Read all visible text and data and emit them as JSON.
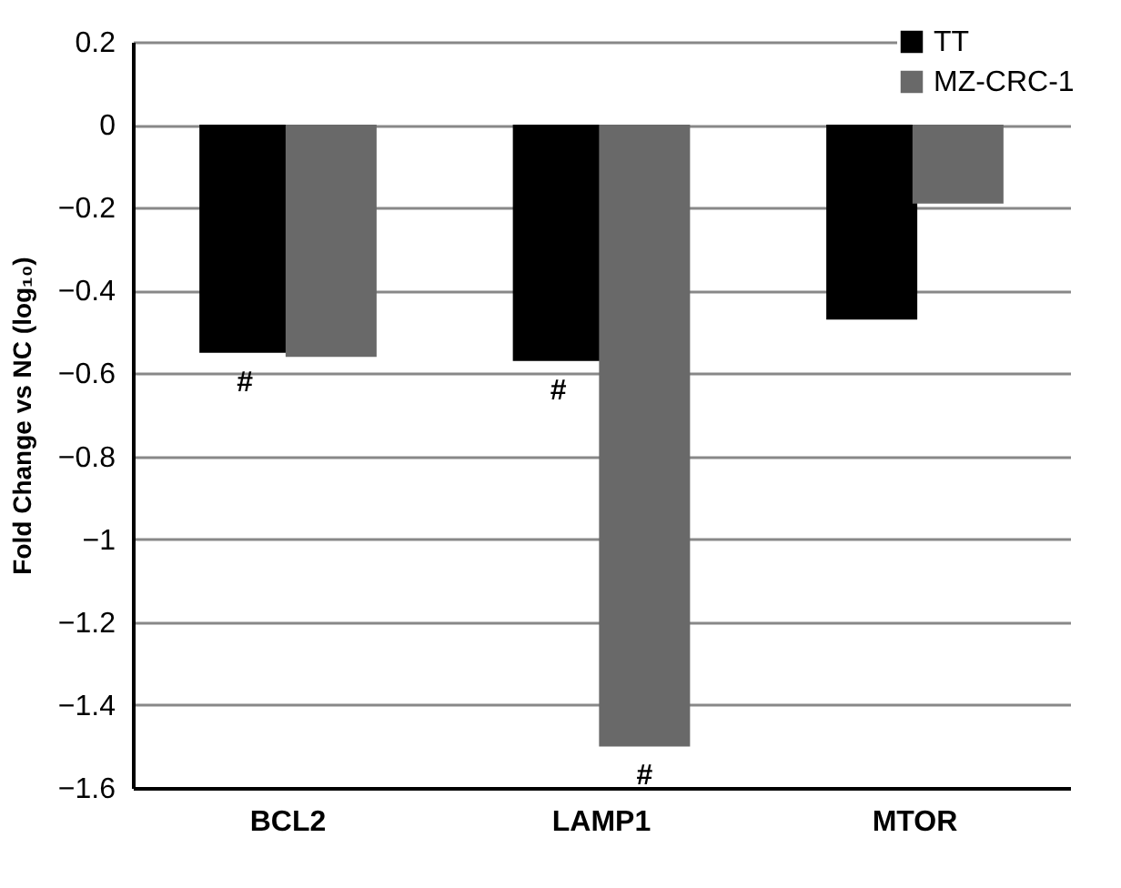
{
  "chart_data": {
    "type": "bar",
    "ylabel": "Fold Change vs NC (log₁₀)",
    "categories": [
      "BCL2",
      "LAMP1",
      "MTOR"
    ],
    "series": [
      {
        "name": "TT",
        "color": "#000000",
        "values": [
          -0.55,
          -0.57,
          -0.47
        ]
      },
      {
        "name": "MZ-CRC-1",
        "color": "#696969",
        "values": [
          -0.56,
          -1.5,
          -0.19
        ]
      }
    ],
    "ylim": [
      -1.6,
      0.2
    ],
    "yticks": [
      0.2,
      0,
      {
        "value": -0.2,
        "label": "−0.2"
      },
      {
        "value": -0.4,
        "label": "−0.4"
      },
      {
        "value": -0.6,
        "label": "−0.6"
      },
      {
        "value": -0.8,
        "label": "−0.8"
      },
      {
        "value": -1,
        "label": "−1"
      },
      {
        "value": -1.2,
        "label": "−1.2"
      },
      {
        "value": -1.4,
        "label": "−1.4"
      },
      {
        "value": -1.6,
        "label": "−1.6"
      }
    ],
    "grid": "y",
    "legend": "top right",
    "annotations": [
      {
        "text": "#",
        "x": "BCL2",
        "y": -0.55
      },
      {
        "text": "#",
        "x": "LAMP1",
        "y": -0.57
      },
      {
        "text": "#",
        "x": "LAMP1",
        "y": -1.5
      }
    ]
  }
}
